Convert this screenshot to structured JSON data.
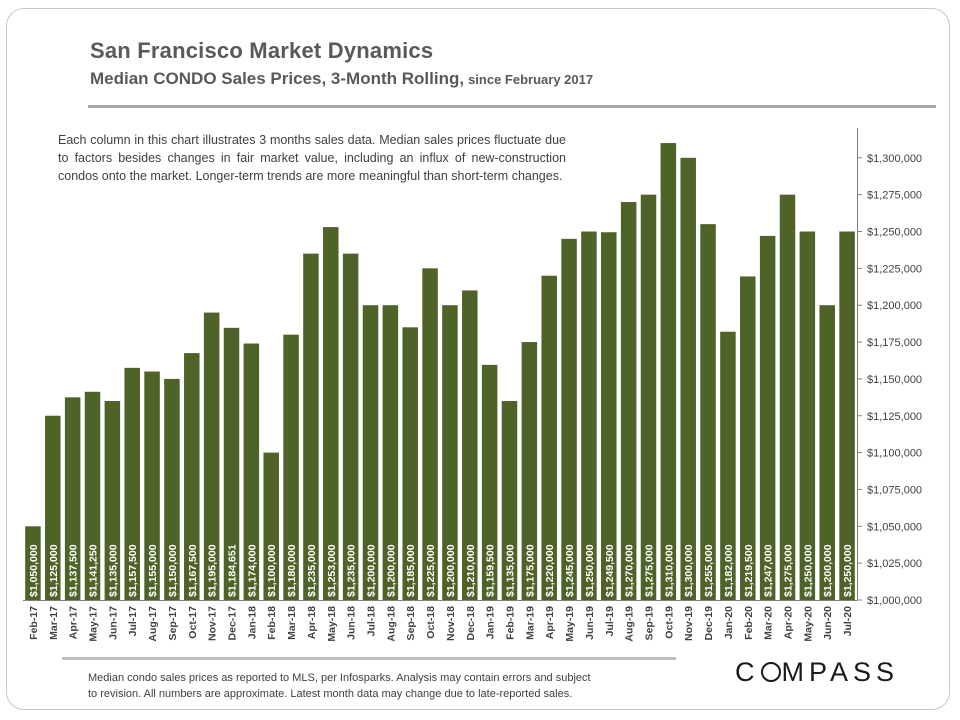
{
  "header": {
    "title": "San Francisco Market Dynamics",
    "subtitle": "Median CONDO Sales Prices, 3-Month Rolling,",
    "subtitle_since": "since February 2017"
  },
  "note": "Each column in this chart illustrates 3 months sales data. Median sales prices fluctuate due to factors besides changes in fair market value, including an influx of new-construction condos onto the market. Longer-term trends are more meaningful than short-term changes.",
  "footnote": {
    "line1": "Median condo sales prices as reported to MLS, per Infosparks.  Analysis may contain errors and subject",
    "line2": "to revision. All numbers are approximate. Latest month data may change due to late-reported sales."
  },
  "logo": {
    "before": "C",
    "after": "MPASS"
  },
  "colors": {
    "bar": "#4f6228",
    "axis": "#7f7f7f",
    "text": "#404040"
  },
  "chart_data": {
    "type": "bar",
    "title": "Median CONDO Sales Prices, 3-Month Rolling",
    "xlabel": "",
    "ylabel": "",
    "ylim": [
      1000000,
      1310000
    ],
    "y_ticks": [
      1000000,
      1025000,
      1050000,
      1075000,
      1100000,
      1125000,
      1150000,
      1175000,
      1200000,
      1225000,
      1250000,
      1275000,
      1300000
    ],
    "y_tick_labels": [
      "$1,000,000",
      "$1,025,000",
      "$1,050,000",
      "$1,075,000",
      "$1,100,000",
      "$1,125,000",
      "$1,150,000",
      "$1,175,000",
      "$1,200,000",
      "$1,225,000",
      "$1,250,000",
      "$1,275,000",
      "$1,300,000"
    ],
    "axis_side": "right",
    "grid": false,
    "categories": [
      "Feb-17",
      "Mar-17",
      "Apr-17",
      "May-17",
      "Jun-17",
      "Jul-17",
      "Aug-17",
      "Sep-17",
      "Oct-17",
      "Nov-17",
      "Dec-17",
      "Jan-18",
      "Feb-18",
      "Mar-18",
      "Apr-18",
      "May-18",
      "Jun-18",
      "Jul-18",
      "Aug-18",
      "Sep-18",
      "Oct-18",
      "Nov-18",
      "Dec-18",
      "Jan-19",
      "Feb-19",
      "Mar-19",
      "Apr-19",
      "May-19",
      "Jun-19",
      "Jul-19",
      "Aug-19",
      "Sep-19",
      "Oct-19",
      "Nov-19",
      "Dec-19",
      "Jan-20",
      "Feb-20",
      "Mar-20",
      "Apr-20",
      "May-20",
      "Jun-20",
      "Jul-20"
    ],
    "values": [
      1050000,
      1125000,
      1137500,
      1141250,
      1135000,
      1157500,
      1155000,
      1150000,
      1167500,
      1195000,
      1184651,
      1174000,
      1100000,
      1180000,
      1235000,
      1253000,
      1235000,
      1200000,
      1200000,
      1185000,
      1225000,
      1200000,
      1210000,
      1159500,
      1135000,
      1175000,
      1220000,
      1245000,
      1250000,
      1249500,
      1270000,
      1275000,
      1310000,
      1300000,
      1255000,
      1182000,
      1219500,
      1247000,
      1275000,
      1250000,
      1200000,
      1250000
    ],
    "data_labels": [
      "$1,050,000",
      "$1,125,000",
      "$1,137,500",
      "$1,141,250",
      "$1,135,000",
      "$1,157,500",
      "$1,155,000",
      "$1,150,000",
      "$1,167,500",
      "$1,195,000",
      "$1,184,651",
      "$1,174,000",
      "$1,100,000",
      "$1,180,000",
      "$1,235,000",
      "$1,253,000",
      "$1,235,000",
      "$1,200,000",
      "$1,200,000",
      "$1,185,000",
      "$1,225,000",
      "$1,200,000",
      "$1,210,000",
      "$1,159,500",
      "$1,135,000",
      "$1,175,000",
      "$1,220,000",
      "$1,245,000",
      "$1,250,000",
      "$1,249,500",
      "$1,270,000",
      "$1,275,000",
      "$1,310,000",
      "$1,300,000",
      "$1,255,000",
      "$1,182,000",
      "$1,219,500",
      "$1,247,000",
      "$1,275,000",
      "$1,250,000",
      "$1,200,000",
      "$1,250,000"
    ]
  }
}
